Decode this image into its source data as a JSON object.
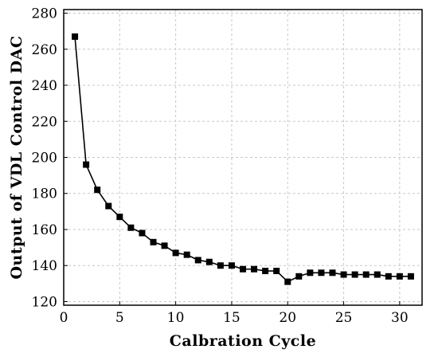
{
  "chart_data": {
    "type": "line",
    "title": "",
    "xlabel": "Calbration  Cycle",
    "ylabel": "Output of VDL Control DAC",
    "xlim": [
      0,
      32
    ],
    "ylim": [
      118,
      282
    ],
    "x_ticks": [
      0,
      5,
      10,
      15,
      20,
      25,
      30
    ],
    "y_ticks": [
      120,
      140,
      160,
      180,
      200,
      220,
      240,
      260,
      280
    ],
    "grid": true,
    "marker": "square",
    "series": [
      {
        "x": [
          1,
          2,
          3,
          4,
          5,
          6,
          7,
          8,
          9,
          10,
          11,
          12,
          13,
          14,
          15,
          16,
          17,
          18,
          19,
          20,
          21,
          22,
          23,
          24,
          25,
          26,
          27,
          28,
          29,
          30,
          31
        ],
        "values": [
          267,
          196,
          182,
          173,
          167,
          161,
          158,
          153,
          151,
          147,
          146,
          143,
          142,
          140,
          140,
          138,
          138,
          137,
          137,
          131,
          134,
          136,
          136,
          136,
          135,
          135,
          135,
          135,
          134,
          134,
          134
        ]
      }
    ]
  }
}
